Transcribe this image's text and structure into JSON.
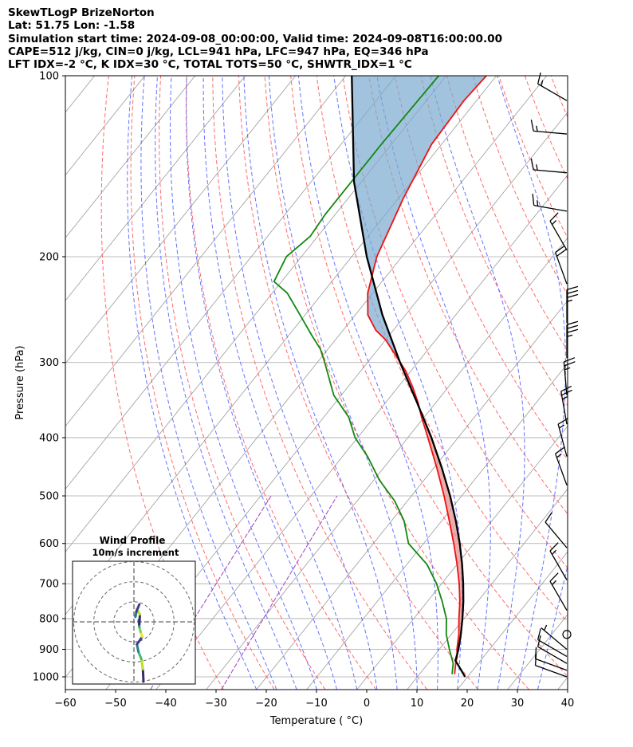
{
  "header": {
    "lines": [
      "SkewTLogP BrizeNorton",
      "Lat: 51.75   Lon: -1.58",
      "Simulation start time: 2024-09-08_00:00:00, Valid time: 2024-09-08T16:00:00.00",
      "CAPE=512 j/kg, CIN=0 j/kg, LCL=941 hPa, LFC=947 hPa, EQ=346 hPa",
      "LFT IDX=-2 °C, K IDX=30 °C, TOTAL TOTS=50 °C, SHWTR_IDX=1 °C"
    ]
  },
  "chart_data": {
    "type": "skewt",
    "xlabel": "Temperature ( °C)",
    "ylabel": "Pressure (hPa)",
    "xlim": [
      -60,
      40
    ],
    "ylim": [
      1050,
      100
    ],
    "y_scale": "log",
    "xticks": [
      -60,
      -50,
      -40,
      -30,
      -20,
      -10,
      0,
      10,
      20,
      30,
      40
    ],
    "xtick_labels": [
      "−60",
      "−50",
      "−40",
      "−30",
      "−20",
      "−10",
      "0",
      "10",
      "20",
      "30",
      "40"
    ],
    "yticks": [
      1000,
      900,
      800,
      700,
      600,
      500,
      400,
      300,
      200,
      100
    ],
    "ytick_labels": [
      "1000",
      "900",
      "800",
      "700",
      "600",
      "500",
      "400",
      "300",
      "200",
      "100"
    ],
    "grid": true,
    "colors": {
      "temperature": "#ee1111",
      "dewpoint": "#118811",
      "parcel": "#000000",
      "cape_fill": "#7aaad0",
      "cin_fill": "#e48a8a",
      "dry_adiabat": "#ff5050",
      "moist_adiabat": "#4a5aff",
      "mixing_ratio": "#a040c0",
      "isotherm": "#999999"
    },
    "temperature": {
      "pressure": [
        990,
        950,
        925,
        900,
        850,
        800,
        750,
        700,
        650,
        600,
        550,
        500,
        450,
        400,
        370,
        350,
        330,
        310,
        290,
        275,
        265,
        250,
        230,
        200,
        160,
        130,
        110,
        100
      ],
      "temp": [
        17.0,
        15.5,
        14.7,
        13.5,
        11.5,
        9.0,
        6.5,
        3.5,
        0.0,
        -4.0,
        -8.5,
        -13.5,
        -19.3,
        -26.0,
        -30.5,
        -33.5,
        -37.0,
        -41.0,
        -46.0,
        -50.0,
        -53.5,
        -57.5,
        -61.0,
        -65.0,
        -69.0,
        -72.0,
        -72.5,
        -72.0
      ]
    },
    "dewpoint": {
      "pressure": [
        990,
        950,
        900,
        850,
        800,
        750,
        700,
        650,
        600,
        550,
        510,
        470,
        430,
        400,
        370,
        340,
        300,
        285,
        270,
        250,
        230,
        220,
        200,
        185,
        170,
        150,
        130,
        100
      ],
      "temp": [
        16.5,
        15.0,
        12.0,
        9.0,
        6.5,
        3.0,
        -1.0,
        -6.0,
        -13.0,
        -17.5,
        -22.5,
        -29.0,
        -35.0,
        -40.5,
        -45.0,
        -51.5,
        -58.5,
        -61.5,
        -65.5,
        -71.0,
        -77.0,
        -81.5,
        -83.0,
        -81.5,
        -82.0,
        -82.0,
        -82.0,
        -81.5
      ]
    },
    "parcel": {
      "pressure": [
        1000,
        950,
        940,
        900,
        850,
        800,
        750,
        700,
        650,
        600,
        550,
        500,
        450,
        400,
        350,
        300,
        250,
        200,
        150,
        100
      ],
      "temp": [
        19.5,
        15.8,
        15.0,
        13.8,
        11.9,
        9.7,
        7.2,
        4.3,
        1.0,
        -2.8,
        -7.2,
        -12.3,
        -18.3,
        -25.3,
        -33.7,
        -43.5,
        -54.6,
        -67.0,
        -81.5,
        -98.8
      ]
    },
    "wind_barbs": [
      {
        "pressure": 1000,
        "direction": 290,
        "speed_kt": 10
      },
      {
        "pressure": 975,
        "direction": 290,
        "speed_kt": 10
      },
      {
        "pressure": 950,
        "direction": 300,
        "speed_kt": 10
      },
      {
        "pressure": 925,
        "direction": 300,
        "speed_kt": 10
      },
      {
        "pressure": 900,
        "direction": 310,
        "speed_kt": 5
      },
      {
        "pressure": 850,
        "direction": 0,
        "speed_kt": 0
      },
      {
        "pressure": 775,
        "direction": 330,
        "speed_kt": 15
      },
      {
        "pressure": 690,
        "direction": 330,
        "speed_kt": 15
      },
      {
        "pressure": 610,
        "direction": 320,
        "speed_kt": 10
      },
      {
        "pressure": 480,
        "direction": 340,
        "speed_kt": 15
      },
      {
        "pressure": 430,
        "direction": 345,
        "speed_kt": 15
      },
      {
        "pressure": 380,
        "direction": 350,
        "speed_kt": 25
      },
      {
        "pressure": 340,
        "direction": 355,
        "speed_kt": 25
      },
      {
        "pressure": 295,
        "direction": 0,
        "speed_kt": 35
      },
      {
        "pressure": 258,
        "direction": 0,
        "speed_kt": 35
      },
      {
        "pressure": 222,
        "direction": 340,
        "speed_kt": 20
      },
      {
        "pressure": 195,
        "direction": 330,
        "speed_kt": 15
      },
      {
        "pressure": 168,
        "direction": 280,
        "speed_kt": 15
      },
      {
        "pressure": 145,
        "direction": 275,
        "speed_kt": 15
      },
      {
        "pressure": 125,
        "direction": 275,
        "speed_kt": 15
      },
      {
        "pressure": 110,
        "direction": 300,
        "speed_kt": 15
      }
    ],
    "hodograph": {
      "title": "Wind Profile",
      "subtitle": "10m/s increment",
      "u": [
        3.2,
        3.0,
        2.5,
        1.5,
        1.0,
        2.8,
        2.2,
        1.8,
        1.6,
        1.8,
        2.0,
        1.0,
        0.5,
        0.8,
        1.8
      ],
      "v": [
        -12.0,
        -9.5,
        -7.5,
        -6.0,
        -4.5,
        -3.0,
        -2.0,
        -1.0,
        0.3,
        -0.5,
        1.5,
        2.5,
        1.0,
        2.0,
        3.5
      ]
    }
  }
}
